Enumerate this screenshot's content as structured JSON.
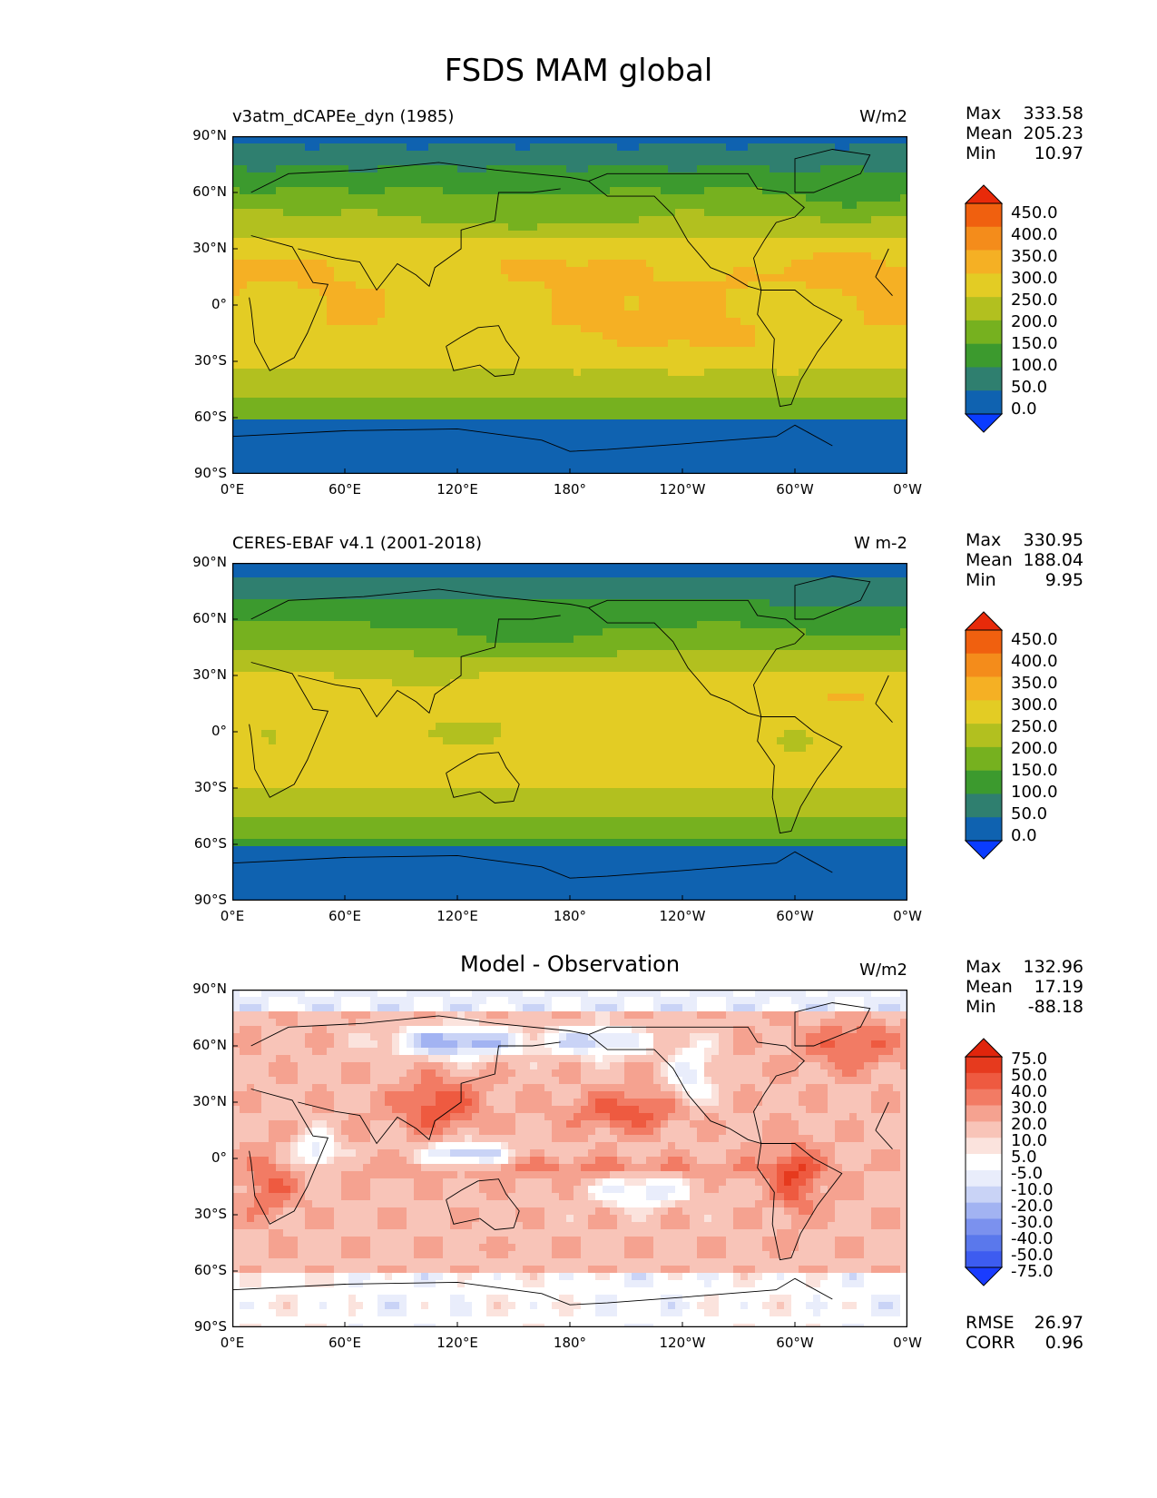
{
  "suptitle": "FSDS MAM global",
  "colors": {
    "abs": [
      "#0a3cff",
      "#0f62b0",
      "#2f7f6f",
      "#3c9a2e",
      "#76b11f",
      "#b2c01f",
      "#e3cc24",
      "#f5b024",
      "#f48c1b",
      "#f0600f",
      "#e82a0a"
    ],
    "diff": [
      "#1a3cff",
      "#3d5cf0",
      "#5a78ec",
      "#7b91ee",
      "#a2b3f2",
      "#c9d3f6",
      "#e9edfb",
      "#ffffff",
      "#fbe3dd",
      "#f8c4b8",
      "#f5a290",
      "#f27b64",
      "#ee5a40",
      "#e63a1e",
      "#e0250c"
    ]
  },
  "chart_data": [
    {
      "type": "heatmap",
      "title": "v3atm_dCAPEe_dyn (1985)",
      "units": "W/m2",
      "stats": {
        "max_label": "Max",
        "max": "333.58",
        "mean_label": "Mean",
        "mean": "205.23",
        "min_label": "Min",
        "min": "10.97"
      },
      "colorbar_levels": [
        "450.0",
        "400.0",
        "350.0",
        "300.0",
        "250.0",
        "200.0",
        "150.0",
        "100.0",
        "50.0",
        "0.0"
      ],
      "xticks": [
        "0°E",
        "60°E",
        "120°E",
        "180°",
        "120°W",
        "60°W",
        "0°W"
      ],
      "yticks": [
        "90°N",
        "60°N",
        "30°N",
        "0°",
        "30°S",
        "60°S",
        "90°S"
      ],
      "xlim": [
        0,
        360
      ],
      "ylim": [
        -90,
        90
      ]
    },
    {
      "type": "heatmap",
      "title": "CERES-EBAF v4.1 (2001-2018)",
      "units": "W m-2",
      "stats": {
        "max_label": "Max",
        "max": "330.95",
        "mean_label": "Mean",
        "mean": "188.04",
        "min_label": "Min",
        "min": "9.95"
      },
      "colorbar_levels": [
        "450.0",
        "400.0",
        "350.0",
        "300.0",
        "250.0",
        "200.0",
        "150.0",
        "100.0",
        "50.0",
        "0.0"
      ],
      "xticks": [
        "0°E",
        "60°E",
        "120°E",
        "180°",
        "120°W",
        "60°W",
        "0°W"
      ],
      "yticks": [
        "90°N",
        "60°N",
        "30°N",
        "0°",
        "30°S",
        "60°S",
        "90°S"
      ],
      "xlim": [
        0,
        360
      ],
      "ylim": [
        -90,
        90
      ]
    },
    {
      "type": "heatmap",
      "title": "Model - Observation",
      "units": "W/m2",
      "stats": {
        "max_label": "Max",
        "max": "132.96",
        "mean_label": "Mean",
        "mean": "17.19",
        "min_label": "Min",
        "min": "-88.18"
      },
      "colorbar_levels": [
        "75.0",
        "50.0",
        "40.0",
        "30.0",
        "20.0",
        "10.0",
        "5.0",
        "-5.0",
        "-10.0",
        "-20.0",
        "-30.0",
        "-40.0",
        "-50.0",
        "-75.0"
      ],
      "xticks": [
        "0°E",
        "60°E",
        "120°E",
        "180°",
        "120°W",
        "60°W",
        "0°W"
      ],
      "yticks": [
        "90°N",
        "60°N",
        "30°N",
        "0°",
        "30°S",
        "60°S",
        "90°S"
      ],
      "xlim": [
        0,
        360
      ],
      "ylim": [
        -90,
        90
      ],
      "rmse_label": "RMSE",
      "rmse": "26.97",
      "corr_label": "CORR",
      "corr": "0.96"
    }
  ]
}
